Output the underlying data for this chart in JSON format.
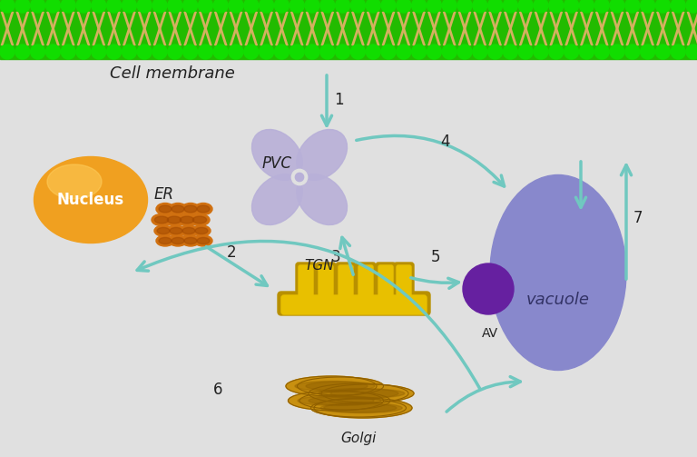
{
  "bg_color": "#e0e0e0",
  "cell_membrane_green": "#22bb00",
  "cell_membrane_bead": "#11dd00",
  "cell_membrane_tail": "#d4b060",
  "nucleus_color": "#f0a020",
  "nucleus_highlight": "#ffd060",
  "er_color": "#d07010",
  "er_dark": "#a04800",
  "pvc_color": "#b8b0d8",
  "vacuole_color": "#8888cc",
  "av_color": "#6620a0",
  "tgn_color": "#e8c000",
  "tgn_shadow": "#b89000",
  "golgi_color": "#c89010",
  "golgi_dark": "#906000",
  "arrow_color": "#70c8c0",
  "text_color": "#222222",
  "label_nucleus": "Nucleus",
  "label_er": "ER",
  "label_pvc": "PVC",
  "label_vacuole": "vacuole",
  "label_av": "AV",
  "label_tgn": "TGN",
  "label_golgi": "Golgi",
  "label_membrane": "Cell membrane"
}
